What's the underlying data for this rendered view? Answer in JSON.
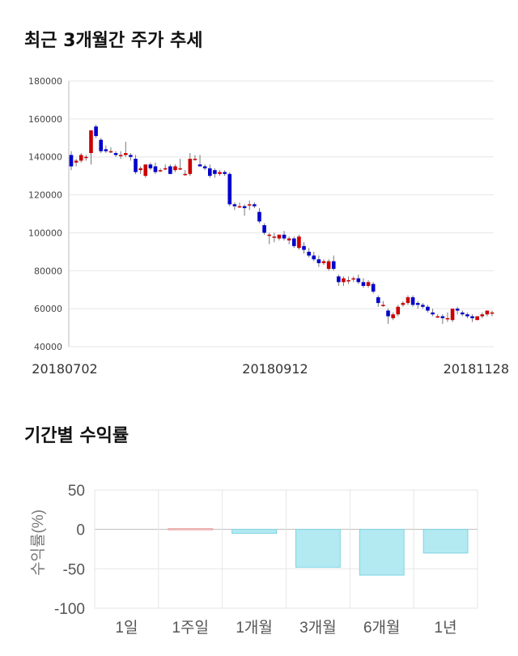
{
  "sections": {
    "price_title": "최근 3개월간 주가 추세",
    "returns_title": "기간별 수익률"
  },
  "colors": {
    "up": "#cc0000",
    "down": "#0000cc",
    "bar_fill": "#b3eaf2",
    "bar_stroke": "#7fd3e3",
    "positive_bar_stroke": "#e8a0a0",
    "grid": "#e6e6e6"
  },
  "chart_data": [
    {
      "type": "candlestick",
      "ylim": [
        40000,
        180000
      ],
      "yticks": [
        "180000",
        "160000",
        "140000",
        "120000",
        "100000",
        "80000",
        "60000",
        "40000"
      ],
      "x_tick_labels": [
        "20180702",
        "20180912",
        "20181128"
      ],
      "grid": true,
      "candles": [
        [
          141000,
          143000,
          133000,
          135000
        ],
        [
          137000,
          139000,
          135000,
          138000
        ],
        [
          138000,
          142000,
          137000,
          141000
        ],
        [
          140000,
          141000,
          138000,
          140000
        ],
        [
          142000,
          154000,
          136000,
          154000
        ],
        [
          156000,
          157000,
          150000,
          151000
        ],
        [
          149000,
          150000,
          142000,
          143000
        ],
        [
          144000,
          146000,
          142000,
          143000
        ],
        [
          143000,
          145000,
          142000,
          143000
        ],
        [
          142000,
          143000,
          140000,
          141000
        ],
        [
          141000,
          143000,
          139000,
          141000
        ],
        [
          141000,
          148000,
          140000,
          142000
        ],
        [
          141000,
          142000,
          138000,
          140000
        ],
        [
          139000,
          141000,
          131000,
          132000
        ],
        [
          133000,
          135000,
          131000,
          134000
        ],
        [
          130000,
          136000,
          129000,
          136000
        ],
        [
          136000,
          137000,
          133000,
          134000
        ],
        [
          135000,
          137000,
          131000,
          132000
        ],
        [
          133000,
          134000,
          132000,
          133000
        ],
        [
          134000,
          136000,
          133000,
          134000
        ],
        [
          135000,
          136000,
          131000,
          131000
        ],
        [
          133000,
          136000,
          132000,
          135000
        ],
        [
          134000,
          139000,
          133000,
          134000
        ],
        [
          131000,
          133000,
          130000,
          131000
        ],
        [
          131000,
          142000,
          130000,
          139000
        ],
        [
          139000,
          141000,
          138000,
          139000
        ],
        [
          136000,
          141000,
          135000,
          135000
        ],
        [
          135000,
          136000,
          133000,
          134000
        ],
        [
          134000,
          136000,
          129000,
          130000
        ],
        [
          133000,
          134000,
          129000,
          131000
        ],
        [
          131000,
          133000,
          130000,
          132000
        ],
        [
          132000,
          133000,
          130000,
          131000
        ],
        [
          131000,
          132000,
          114000,
          115000
        ],
        [
          115000,
          116000,
          112000,
          114000
        ],
        [
          114000,
          116000,
          113000,
          114000
        ],
        [
          114000,
          115000,
          109000,
          113000
        ],
        [
          115000,
          117000,
          112000,
          115000
        ],
        [
          115000,
          116000,
          113000,
          114000
        ],
        [
          111000,
          113000,
          105000,
          106000
        ],
        [
          104000,
          105000,
          99000,
          100000
        ],
        [
          99000,
          100000,
          94000,
          99000
        ],
        [
          98000,
          100000,
          95000,
          98000
        ],
        [
          97000,
          99000,
          96000,
          99000
        ],
        [
          99000,
          101000,
          96000,
          97000
        ],
        [
          96000,
          98000,
          94000,
          97000
        ],
        [
          97000,
          98000,
          92000,
          93000
        ],
        [
          92000,
          99000,
          91000,
          98000
        ],
        [
          93000,
          95000,
          89000,
          91000
        ],
        [
          90000,
          92000,
          87000,
          88000
        ],
        [
          88000,
          90000,
          85000,
          86000
        ],
        [
          86000,
          88000,
          82000,
          84000
        ],
        [
          84000,
          86000,
          83000,
          85000
        ],
        [
          81000,
          86000,
          80000,
          85000
        ],
        [
          85000,
          88000,
          80000,
          81000
        ],
        [
          77000,
          78000,
          72000,
          74000
        ],
        [
          74000,
          77000,
          72000,
          76000
        ],
        [
          75000,
          77000,
          73000,
          75000
        ],
        [
          76000,
          77000,
          74000,
          76000
        ],
        [
          76000,
          78000,
          73000,
          74000
        ],
        [
          74000,
          76000,
          71000,
          72000
        ],
        [
          72000,
          75000,
          71000,
          74000
        ],
        [
          73000,
          74000,
          68000,
          69000
        ],
        [
          66000,
          67000,
          61000,
          63000
        ],
        [
          62000,
          64000,
          61000,
          62000
        ],
        [
          59000,
          60000,
          52000,
          56000
        ],
        [
          55000,
          58000,
          54000,
          57000
        ],
        [
          57000,
          62000,
          56000,
          61000
        ],
        [
          62000,
          64000,
          61000,
          63000
        ],
        [
          63000,
          67000,
          62000,
          66000
        ],
        [
          66000,
          67000,
          61000,
          62000
        ],
        [
          63000,
          64000,
          60000,
          62000
        ],
        [
          62000,
          63000,
          60000,
          61000
        ],
        [
          61000,
          62000,
          58000,
          59000
        ],
        [
          58000,
          60000,
          56000,
          57000
        ],
        [
          56000,
          57000,
          55000,
          56000
        ],
        [
          56000,
          57000,
          52000,
          55000
        ],
        [
          55000,
          58000,
          53000,
          55000
        ],
        [
          54000,
          60000,
          53000,
          60000
        ],
        [
          60000,
          61000,
          57000,
          59000
        ],
        [
          58000,
          59000,
          56000,
          57000
        ],
        [
          57000,
          58000,
          55000,
          56000
        ],
        [
          56000,
          57000,
          53000,
          55000
        ],
        [
          54000,
          56000,
          54000,
          56000
        ],
        [
          56000,
          58000,
          55000,
          57000
        ],
        [
          57000,
          59000,
          56000,
          59000
        ],
        [
          58000,
          59000,
          56000,
          58000
        ]
      ]
    },
    {
      "type": "bar",
      "ylabel": "수익률(%)",
      "ylim": [
        -100,
        50
      ],
      "yticks": [
        "50",
        "0",
        "-50",
        "-100"
      ],
      "categories": [
        "1일",
        "1주일",
        "1개월",
        "3개월",
        "6개월",
        "1년"
      ],
      "values": [
        0,
        1,
        -5,
        -48,
        -58,
        -30
      ],
      "grid": true
    }
  ]
}
